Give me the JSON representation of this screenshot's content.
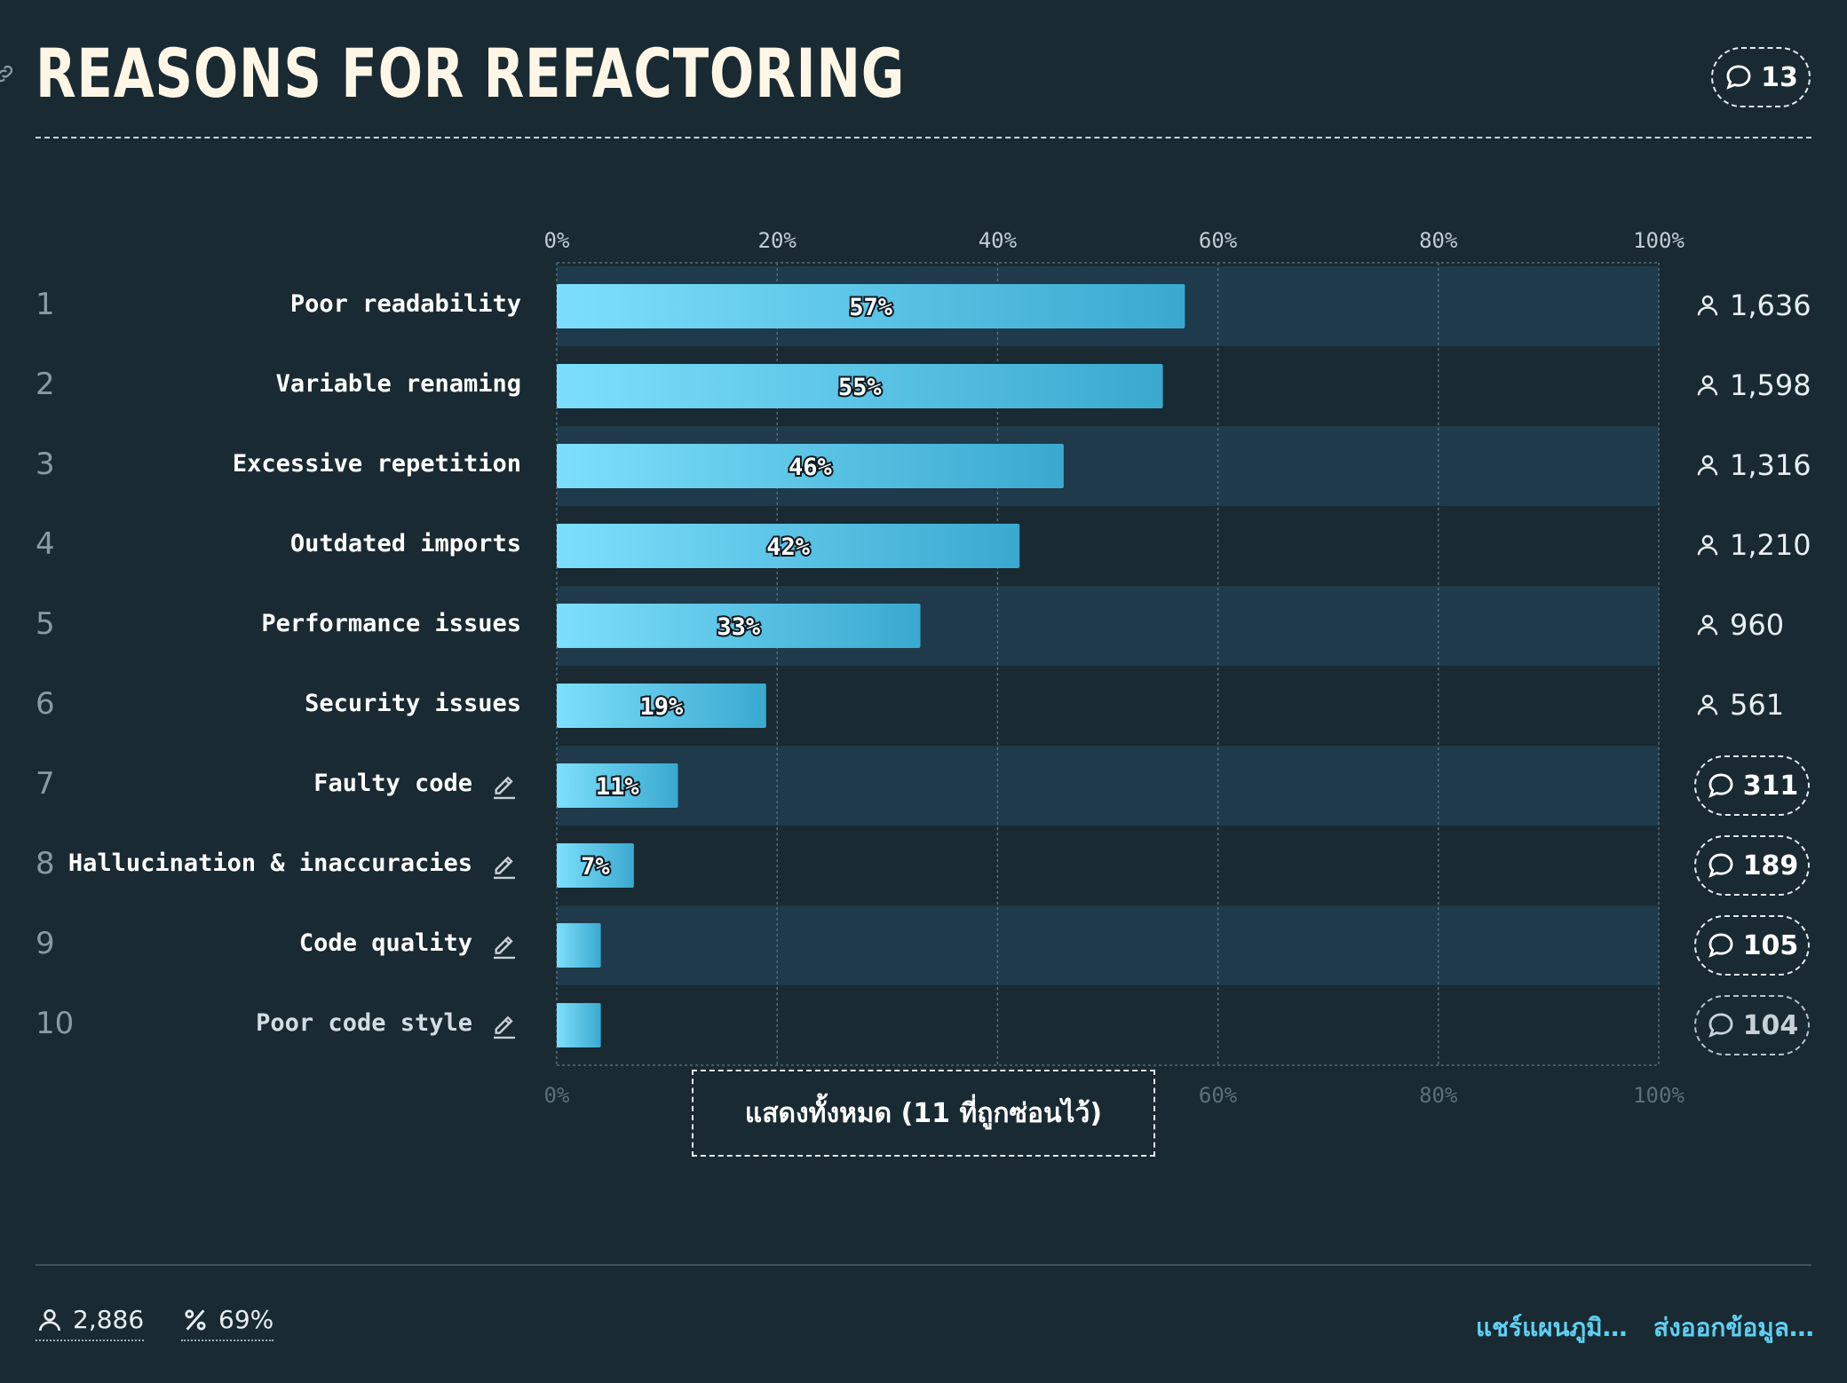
{
  "header": {
    "title": "REASONS FOR REFACTORING",
    "comment_count": "13"
  },
  "chart_data": {
    "type": "bar",
    "orientation": "horizontal",
    "title": "REASONS FOR REFACTORING",
    "xlim": [
      0,
      100
    ],
    "x_ticks": [
      "0%",
      "20%",
      "40%",
      "60%",
      "80%",
      "100%"
    ],
    "grid": true,
    "categories": [
      "Poor readability",
      "Variable renaming",
      "Excessive repetition",
      "Outdated imports",
      "Performance issues",
      "Security issues",
      "Faulty code",
      "Hallucination & inaccuracies",
      "Code quality",
      "Poor code style"
    ],
    "ranks": [
      "1",
      "2",
      "3",
      "4",
      "5",
      "6",
      "7",
      "8",
      "9",
      "10"
    ],
    "values": [
      57,
      55,
      46,
      42,
      33,
      19,
      11,
      7,
      4,
      4
    ],
    "value_labels": [
      "57%",
      "55%",
      "46%",
      "42%",
      "33%",
      "19%",
      "11%",
      "7%",
      "",
      ""
    ],
    "respondents": [
      "1,636",
      "1,598",
      "1,316",
      "1,210",
      "960",
      "561"
    ],
    "comments": [
      "311",
      "189",
      "105",
      "104"
    ],
    "colors": {
      "bar_start": "#7ddffc",
      "bar_end": "#3aa9cf",
      "row_band": "#1f3a4a"
    }
  },
  "show_all_label": "แสดงทั้งหมด (11 ที่ถูกซ่อนไว้)",
  "footer": {
    "total_respondents": "2,886",
    "percent": "69%",
    "share_label": "แชร์แผนภูมิ…",
    "export_label": "ส่งออกข้อมูล…"
  }
}
